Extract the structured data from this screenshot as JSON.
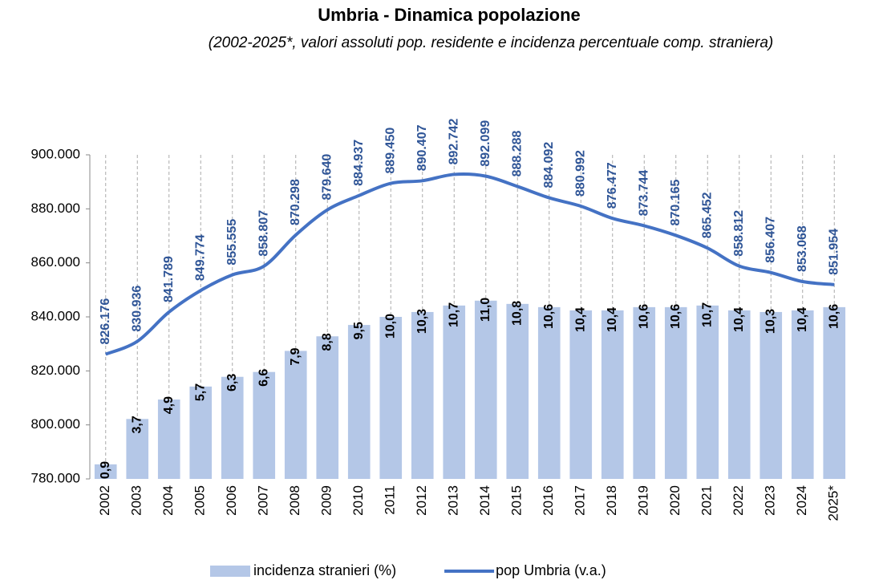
{
  "chart_data": {
    "type": "bar+line",
    "title": "Umbria - Dinamica popolazione",
    "subtitle": "(2002-2025*, valori assoluti pop. residente e incidenza percentuale comp. straniera)",
    "categories": [
      "2002",
      "2003",
      "2004",
      "2005",
      "2006",
      "2007",
      "2008",
      "2009",
      "2010",
      "2011",
      "2012",
      "2013",
      "2014",
      "2015",
      "2016",
      "2017",
      "2018",
      "2019",
      "2020",
      "2021",
      "2022",
      "2023",
      "2024",
      "2025*"
    ],
    "series": [
      {
        "name": "incidenza stranieri (%)",
        "type": "bar",
        "axis": "y2",
        "color": "#b4c7e7",
        "values": [
          0.9,
          3.7,
          4.9,
          5.7,
          6.3,
          6.6,
          7.9,
          8.8,
          9.5,
          10.0,
          10.3,
          10.7,
          11.0,
          10.8,
          10.6,
          10.4,
          10.4,
          10.6,
          10.6,
          10.7,
          10.4,
          10.3,
          10.4,
          10.6
        ],
        "value_labels": [
          "0,9",
          "3,7",
          "4,9",
          "5,7",
          "6,3",
          "6,6",
          "7,9",
          "8,8",
          "9,5",
          "10,0",
          "10,3",
          "10,7",
          "11,0",
          "10,8",
          "10,6",
          "10,4",
          "10,4",
          "10,6",
          "10,6",
          "10,7",
          "10,4",
          "10,3",
          "10,4",
          "10,6"
        ]
      },
      {
        "name": "pop Umbria (v.a.)",
        "type": "line",
        "axis": "y",
        "color": "#4472c4",
        "values": [
          826176,
          830936,
          841789,
          849774,
          855555,
          858807,
          870298,
          879640,
          884937,
          889450,
          890407,
          892742,
          892099,
          888288,
          884092,
          880992,
          876477,
          873744,
          870165,
          865452,
          858812,
          856407,
          853068,
          851954
        ],
        "value_labels": [
          "826.176",
          "830.936",
          "841.789",
          "849.774",
          "855.555",
          "858.807",
          "870.298",
          "879.640",
          "884.937",
          "889.450",
          "890.407",
          "892.742",
          "892.099",
          "888.288",
          "884.092",
          "880.992",
          "876.477",
          "873.744",
          "870.165",
          "865.452",
          "858.812",
          "856.407",
          "853.068",
          "851.954"
        ]
      }
    ],
    "ylim": [
      780000,
      900000
    ],
    "yticks": [
      {
        "value": 780000,
        "label": "780.000"
      },
      {
        "value": 800000,
        "label": "800.000"
      },
      {
        "value": 820000,
        "label": "820.000"
      },
      {
        "value": 840000,
        "label": "840.000"
      },
      {
        "value": 860000,
        "label": "860.000"
      },
      {
        "value": 880000,
        "label": "880.000"
      },
      {
        "value": 900000,
        "label": "900.000"
      }
    ],
    "y2lim": [
      0,
      20
    ],
    "legend": "bottom"
  }
}
